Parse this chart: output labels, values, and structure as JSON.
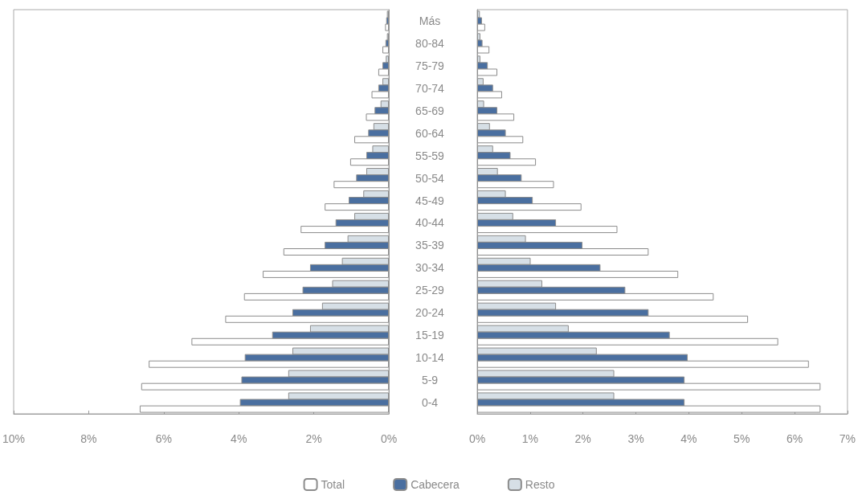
{
  "chart_data": [
    {
      "type": "bar",
      "orientation": "horizontal",
      "legend": "bottom",
      "categories": [
        "Más",
        "80-84",
        "75-79",
        "70-74",
        "65-69",
        "60-64",
        "55-59",
        "50-54",
        "45-49",
        "40-44",
        "35-39",
        "30-34",
        "25-29",
        "20-24",
        "15-19",
        "10-14",
        "5-9",
        "0-4"
      ],
      "xlim": [
        10,
        0
      ],
      "xticks": [
        {
          "value": 10,
          "label": "10%"
        },
        {
          "value": 8,
          "label": "8%"
        },
        {
          "value": 6,
          "label": "6%"
        },
        {
          "value": 4,
          "label": "4%"
        },
        {
          "value": 2,
          "label": "2%"
        },
        {
          "value": 0,
          "label": "0%"
        }
      ],
      "series": [
        {
          "name": "Resto",
          "color": "#d6dfe6",
          "values": [
            0.05,
            0.05,
            0.08,
            0.17,
            0.22,
            0.41,
            0.44,
            0.6,
            0.68,
            0.92,
            1.1,
            1.25,
            1.51,
            1.78,
            2.1,
            2.57,
            2.68,
            2.68
          ]
        },
        {
          "name": "Cabecera",
          "color": "#4a6fa0",
          "values": [
            0.07,
            0.09,
            0.17,
            0.28,
            0.38,
            0.55,
            0.6,
            0.87,
            1.07,
            1.42,
            1.71,
            2.1,
            2.3,
            2.57,
            3.11,
            3.84,
            3.93,
            3.97
          ]
        },
        {
          "name": "Total",
          "color": "#ffffff",
          "values": [
            0.1,
            0.17,
            0.28,
            0.46,
            0.61,
            0.92,
            1.03,
            1.47,
            1.71,
            2.35,
            2.81,
            3.36,
            3.86,
            4.36,
            5.26,
            6.4,
            6.6,
            6.64
          ]
        }
      ]
    },
    {
      "type": "bar",
      "orientation": "horizontal",
      "categories": [
        null,
        null,
        null,
        null,
        null,
        null,
        null,
        null,
        null,
        null,
        null,
        null,
        null,
        null,
        null,
        null,
        null,
        null
      ],
      "xlim": [
        0,
        7
      ],
      "xticks": [
        {
          "value": 0,
          "label": "0%"
        },
        {
          "value": 1,
          "label": "1%"
        },
        {
          "value": 2,
          "label": "2%"
        },
        {
          "value": 3,
          "label": "3%"
        },
        {
          "value": 4,
          "label": "4%"
        },
        {
          "value": 5,
          "label": "5%"
        },
        {
          "value": 6,
          "label": "6%"
        },
        {
          "value": 7,
          "label": "7%"
        }
      ],
      "series": [
        {
          "color": "#d6dfe6",
          "values": [
            0.05,
            0.06,
            0.06,
            0.12,
            0.13,
            0.24,
            0.3,
            0.39,
            0.54,
            0.68,
            0.92,
            1.01,
            1.23,
            1.49,
            1.73,
            2.26,
            2.59,
            2.59
          ]
        },
        {
          "color": "#4a6fa0",
          "values": [
            0.09,
            0.1,
            0.2,
            0.3,
            0.38,
            0.54,
            0.63,
            0.84,
            1.05,
            1.49,
            1.99,
            2.33,
            2.8,
            3.24,
            3.64,
            3.98,
            3.92,
            3.92
          ]
        },
        {
          "color": "#ffffff",
          "values": [
            0.15,
            0.23,
            0.38,
            0.47,
            0.7,
            0.87,
            1.11,
            1.45,
            1.97,
            2.65,
            3.24,
            3.8,
            4.47,
            5.12,
            5.69,
            6.27,
            6.49,
            6.49
          ]
        }
      ]
    }
  ]
}
